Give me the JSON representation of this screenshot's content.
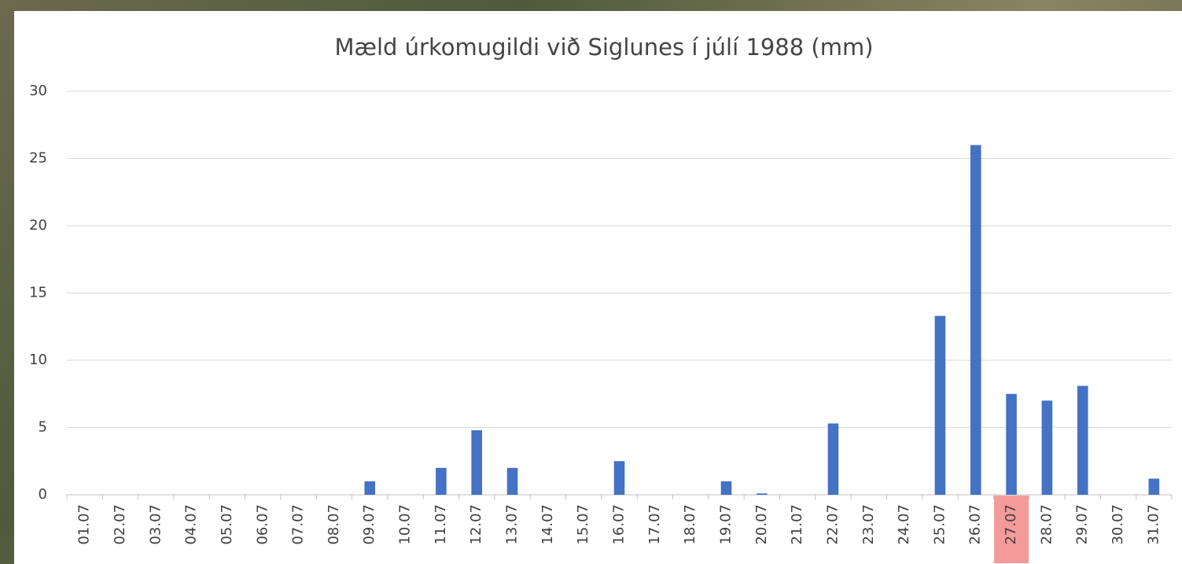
{
  "chart_data": {
    "type": "bar",
    "title": "Mæld úrkomugildi við Siglunes í júlí 1988 (mm)",
    "categories": [
      "01.07",
      "02.07",
      "03.07",
      "04.07",
      "05.07",
      "06.07",
      "07.07",
      "08.07",
      "09.07",
      "10.07",
      "11.07",
      "12.07",
      "13.07",
      "14.07",
      "15.07",
      "16.07",
      "17.07",
      "18.07",
      "19.07",
      "20.07",
      "21.07",
      "22.07",
      "23.07",
      "24.07",
      "25.07",
      "26.07",
      "27.07",
      "28.07",
      "29.07",
      "30.07",
      "31.07"
    ],
    "values": [
      0,
      0,
      0,
      0,
      0,
      0,
      0,
      0,
      1,
      0,
      2,
      4.8,
      2,
      0,
      0,
      2.5,
      0,
      0,
      1,
      0.1,
      0,
      5.3,
      0,
      0,
      13.3,
      26,
      7.5,
      7,
      8.1,
      0,
      1.2
    ],
    "color": "#4472c4",
    "ylim": [
      0,
      30
    ],
    "yticks": [
      0,
      5,
      10,
      15,
      20,
      25,
      30
    ],
    "grid": true,
    "highlight_index": 26,
    "highlight_color": "#f59a9a"
  }
}
